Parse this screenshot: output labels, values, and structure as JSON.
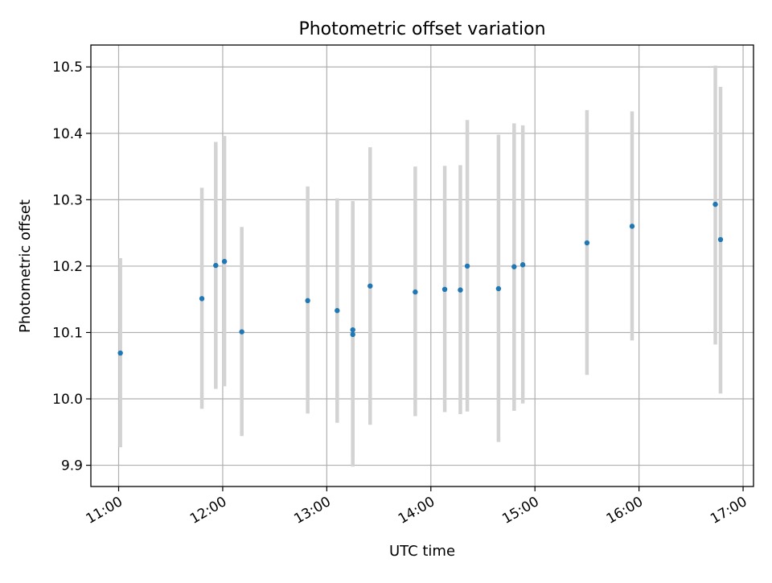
{
  "chart_data": {
    "type": "scatter",
    "title": "Photometric offset variation",
    "xlabel": "UTC time",
    "ylabel": "Photometric offset",
    "x_tick_labels": [
      "11:00",
      "12:00",
      "13:00",
      "14:00",
      "15:00",
      "16:00",
      "17:00"
    ],
    "y_tick_labels": [
      "9.9",
      "10.0",
      "10.1",
      "10.2",
      "10.3",
      "10.4",
      "10.5"
    ],
    "x_ticks": [
      "11:00",
      "12:00",
      "13:00",
      "14:00",
      "15:00",
      "16:00",
      "17:00"
    ],
    "y_ticks": [
      9.9,
      10.0,
      10.1,
      10.2,
      10.3,
      10.4,
      10.5
    ],
    "xlim": [
      "10:44",
      "17:06"
    ],
    "ylim": [
      9.868,
      10.533
    ],
    "grid": true,
    "colors": {
      "point": "#1f77b4",
      "errorbar": "#d3d3d3",
      "grid": "#b0b0b0"
    },
    "points": [
      {
        "x": "11:01",
        "y": 10.069,
        "y_low": 9.927,
        "y_high": 10.212
      },
      {
        "x": "11:48",
        "y": 10.151,
        "y_low": 9.985,
        "y_high": 10.318
      },
      {
        "x": "11:56",
        "y": 10.201,
        "y_low": 10.015,
        "y_high": 10.387
      },
      {
        "x": "12:01",
        "y": 10.207,
        "y_low": 10.019,
        "y_high": 10.396
      },
      {
        "x": "12:11",
        "y": 10.101,
        "y_low": 9.944,
        "y_high": 10.259
      },
      {
        "x": "12:49",
        "y": 10.148,
        "y_low": 9.978,
        "y_high": 10.32
      },
      {
        "x": "13:06",
        "y": 10.133,
        "y_low": 9.964,
        "y_high": 10.302
      },
      {
        "x": "13:15",
        "y": 10.104,
        "y_low": 9.91,
        "y_high": 10.298
      },
      {
        "x": "13:15",
        "y": 10.097,
        "y_low": 9.898,
        "y_high": 10.296
      },
      {
        "x": "13:25",
        "y": 10.17,
        "y_low": 9.961,
        "y_high": 10.379
      },
      {
        "x": "13:51",
        "y": 10.161,
        "y_low": 9.974,
        "y_high": 10.35
      },
      {
        "x": "14:08",
        "y": 10.165,
        "y_low": 9.98,
        "y_high": 10.351
      },
      {
        "x": "14:17",
        "y": 10.164,
        "y_low": 9.977,
        "y_high": 10.352
      },
      {
        "x": "14:21",
        "y": 10.2,
        "y_low": 9.981,
        "y_high": 10.42
      },
      {
        "x": "14:39",
        "y": 10.166,
        "y_low": 9.935,
        "y_high": 10.398
      },
      {
        "x": "14:48",
        "y": 10.199,
        "y_low": 9.982,
        "y_high": 10.415
      },
      {
        "x": "14:53",
        "y": 10.202,
        "y_low": 9.993,
        "y_high": 10.412
      },
      {
        "x": "15:30",
        "y": 10.235,
        "y_low": 10.036,
        "y_high": 10.435
      },
      {
        "x": "15:56",
        "y": 10.26,
        "y_low": 10.088,
        "y_high": 10.433
      },
      {
        "x": "16:44",
        "y": 10.293,
        "y_low": 10.082,
        "y_high": 10.502
      },
      {
        "x": "16:47",
        "y": 10.24,
        "y_low": 10.008,
        "y_high": 10.47
      }
    ]
  }
}
